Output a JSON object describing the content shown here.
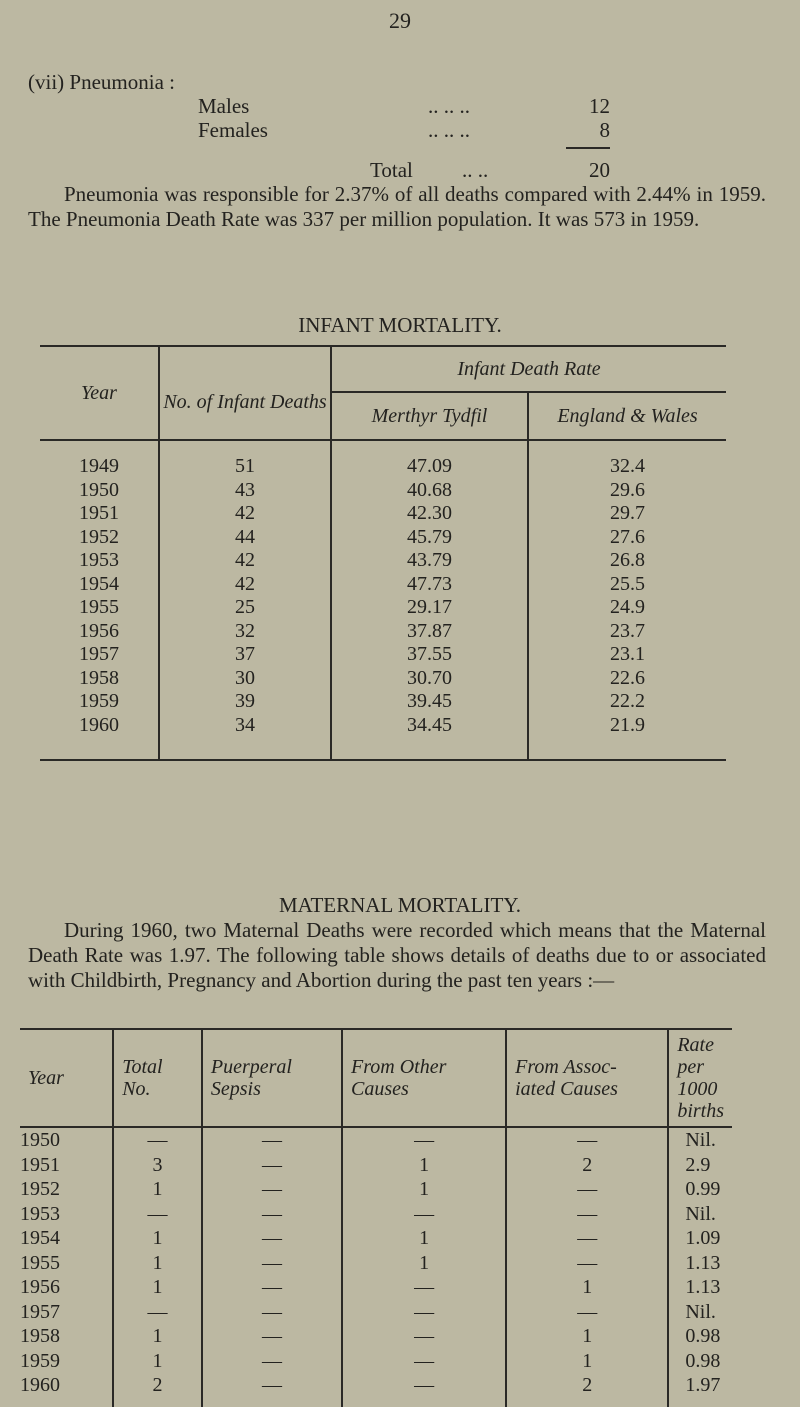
{
  "page_number": "29",
  "pneumonia": {
    "heading": "(vii) Pneumonia :",
    "rows": [
      {
        "label": "Males",
        "dots": ".. .. ..",
        "value": "12"
      },
      {
        "label": "Females",
        "dots": ".. .. ..",
        "value": "8"
      }
    ],
    "total": {
      "label": "Total",
      "dots": ".. ..",
      "value": "20"
    },
    "paragraph": "Pneumonia was responsible for 2.37% of all deaths compared with 2.44% in 1959. The Pneumonia Death Rate was 337 per million population. It was 573 in 1959."
  },
  "infant": {
    "title": "INFANT MORTALITY.",
    "headers": {
      "year": "Year",
      "deaths": "No. of Infant Deaths",
      "rate_group": "Infant Death Rate",
      "merthyr": "Merthyr Tydfil",
      "england": "England & Wales"
    },
    "rows": [
      [
        "1949",
        "51",
        "47.09",
        "32.4"
      ],
      [
        "1950",
        "43",
        "40.68",
        "29.6"
      ],
      [
        "1951",
        "42",
        "42.30",
        "29.7"
      ],
      [
        "1952",
        "44",
        "45.79",
        "27.6"
      ],
      [
        "1953",
        "42",
        "43.79",
        "26.8"
      ],
      [
        "1954",
        "42",
        "47.73",
        "25.5"
      ],
      [
        "1955",
        "25",
        "29.17",
        "24.9"
      ],
      [
        "1956",
        "32",
        "37.87",
        "23.7"
      ],
      [
        "1957",
        "37",
        "37.55",
        "23.1"
      ],
      [
        "1958",
        "30",
        "30.70",
        "22.6"
      ],
      [
        "1959",
        "39",
        "39.45",
        "22.2"
      ],
      [
        "1960",
        "34",
        "34.45",
        "21.9"
      ]
    ]
  },
  "maternal": {
    "title": "MATERNAL MORTALITY.",
    "paragraph": "During 1960, two Maternal Deaths were recorded which means that the Maternal Death Rate was 1.97. The following table shows details of deaths due to or associated with Childbirth, Pregnancy and Abortion during the past ten years :—",
    "headers": [
      "Year",
      "Total No.",
      "Puerperal Sepsis",
      "From Other Causes",
      "From Associated Causes",
      "Rate per 1000 births"
    ],
    "header_lines": [
      [
        "Year"
      ],
      [
        "Total",
        "No."
      ],
      [
        "Puerperal",
        "Sepsis"
      ],
      [
        "From Other",
        "Causes"
      ],
      [
        "From Assoc-",
        "iated Causes"
      ],
      [
        "Rate per",
        "1000 births"
      ]
    ],
    "rows": [
      [
        "1950",
        "—",
        "—",
        "—",
        "—",
        "Nil."
      ],
      [
        "1951",
        "3",
        "—",
        "1",
        "2",
        "2.9"
      ],
      [
        "1952",
        "1",
        "—",
        "1",
        "—",
        "0.99"
      ],
      [
        "1953",
        "—",
        "—",
        "—",
        "—",
        "Nil."
      ],
      [
        "1954",
        "1",
        "—",
        "1",
        "—",
        "1.09"
      ],
      [
        "1955",
        "1",
        "—",
        "1",
        "—",
        "1.13"
      ],
      [
        "1956",
        "1",
        "—",
        "—",
        "1",
        "1.13"
      ],
      [
        "1957",
        "—",
        "—",
        "—",
        "—",
        "Nil."
      ],
      [
        "1958",
        "1",
        "—",
        "—",
        "1",
        "0.98"
      ],
      [
        "1959",
        "1",
        "—",
        "—",
        "1",
        "0.98"
      ],
      [
        "1960",
        "2",
        "—",
        "—",
        "2",
        "1.97"
      ]
    ]
  }
}
